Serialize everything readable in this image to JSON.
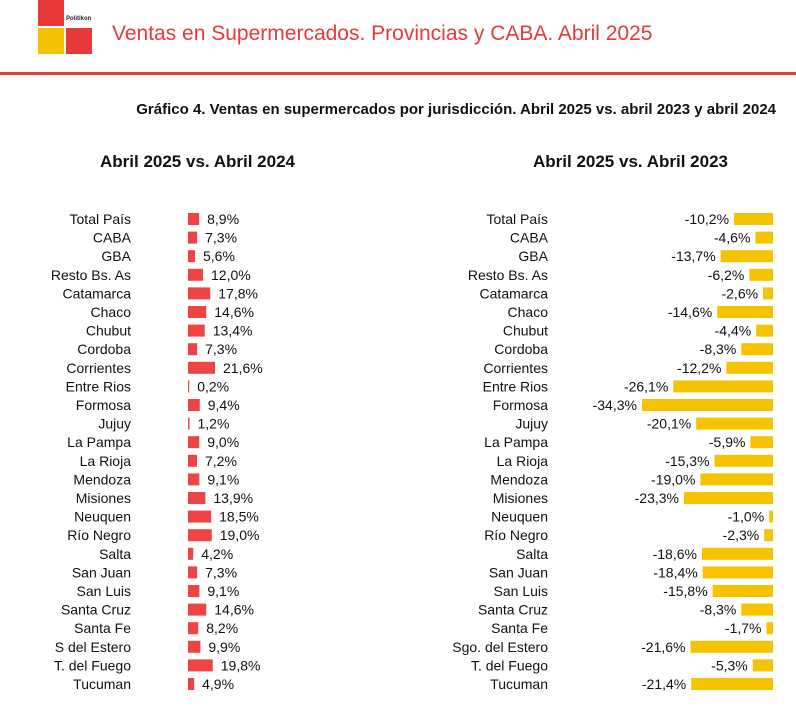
{
  "header": {
    "brand": "Politikon",
    "title": "Ventas en Supermercados. Provincias y CABA. Abril 2025"
  },
  "colors": {
    "accent": "#e8393a",
    "left_bars": "#ef4444",
    "right_bars": "#f7c200"
  },
  "chart_data": [
    {
      "type": "bar",
      "orientation": "horizontal",
      "title": "Gráfico 4. Ventas en supermercados por jurisdicción. Abril 2025 vs. abril 2023 y abril 2024",
      "subtitle": "Abril 2025 vs. Abril 2024",
      "categories": [
        "Total País",
        "CABA",
        "GBA",
        "Resto Bs. As",
        "Catamarca",
        "Chaco",
        "Chubut",
        "Cordoba",
        "Corrientes",
        "Entre Rios",
        "Formosa",
        "Jujuy",
        "La Pampa",
        "La Rioja",
        "Mendoza",
        "Misiones",
        "Neuquen",
        "Río Negro",
        "Salta",
        "San Juan",
        "San Luis",
        "Santa Cruz",
        "Santa Fe",
        "S del Estero",
        "T. del Fuego",
        "Tucuman"
      ],
      "values": [
        8.9,
        7.3,
        5.6,
        12.0,
        17.8,
        14.6,
        13.4,
        7.3,
        21.6,
        0.2,
        9.4,
        1.2,
        9.0,
        7.2,
        9.1,
        13.9,
        18.5,
        19.0,
        4.2,
        7.3,
        9.1,
        14.6,
        8.2,
        9.9,
        19.8,
        4.9
      ],
      "labels": [
        "8,9%",
        "7,3%",
        "5,6%",
        "12,0%",
        "17,8%",
        "14,6%",
        "13,4%",
        "7,3%",
        "21,6%",
        "0,2%",
        "9,4%",
        "1,2%",
        "9,0%",
        "7,2%",
        "9,1%",
        "13,9%",
        "18,5%",
        "19,0%",
        "4,2%",
        "7,3%",
        "9,1%",
        "14,6%",
        "8,2%",
        "9,9%",
        "19,8%",
        "4,9%"
      ],
      "unit": "%",
      "grid": false,
      "legend": "none"
    },
    {
      "type": "bar",
      "orientation": "horizontal",
      "subtitle": "Abril 2025 vs. Abril 2023",
      "categories": [
        "Total País",
        "CABA",
        "GBA",
        "Resto Bs. As",
        "Catamarca",
        "Chaco",
        "Chubut",
        "Cordoba",
        "Corrientes",
        "Entre Rios",
        "Formosa",
        "Jujuy",
        "La Pampa",
        "La Rioja",
        "Mendoza",
        "Misiones",
        "Neuquen",
        "Río Negro",
        "Salta",
        "San Juan",
        "San Luis",
        "Santa Cruz",
        "Santa Fe",
        "Sgo. del Estero",
        "T. del Fuego",
        "Tucuman"
      ],
      "values": [
        -10.2,
        -4.6,
        -13.7,
        -6.2,
        -2.6,
        -14.6,
        -4.4,
        -8.3,
        -12.2,
        -26.1,
        -34.3,
        -20.1,
        -5.9,
        -15.3,
        -19.0,
        -23.3,
        -1.0,
        -2.3,
        -18.6,
        -18.4,
        -15.8,
        -8.3,
        -1.7,
        -21.6,
        -5.3,
        -21.4
      ],
      "labels": [
        "-10,2%",
        "-4,6%",
        "-13,7%",
        "-6,2%",
        "-2,6%",
        "-14,6%",
        "-4,4%",
        "-8,3%",
        "-12,2%",
        "-26,1%",
        "-34,3%",
        "-20,1%",
        "-5,9%",
        "-15,3%",
        "-19,0%",
        "-23,3%",
        "-1,0%",
        "-2,3%",
        "-18,6%",
        "-18,4%",
        "-15,8%",
        "-8,3%",
        "-1,7%",
        "-21,6%",
        "-5,3%",
        "-21,4%"
      ],
      "unit": "%",
      "grid": false,
      "legend": "none"
    }
  ]
}
